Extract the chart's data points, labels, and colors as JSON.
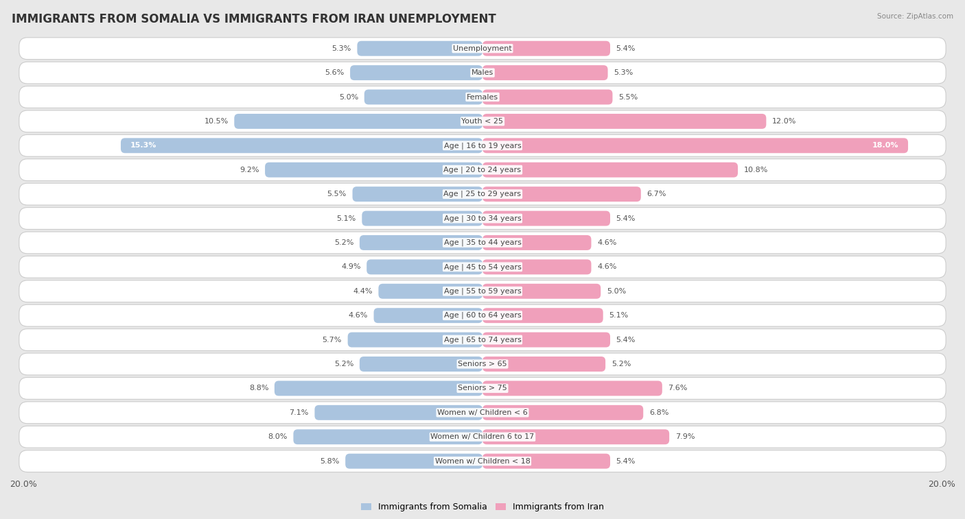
{
  "title": "IMMIGRANTS FROM SOMALIA VS IMMIGRANTS FROM IRAN UNEMPLOYMENT",
  "source": "Source: ZipAtlas.com",
  "categories": [
    "Unemployment",
    "Males",
    "Females",
    "Youth < 25",
    "Age | 16 to 19 years",
    "Age | 20 to 24 years",
    "Age | 25 to 29 years",
    "Age | 30 to 34 years",
    "Age | 35 to 44 years",
    "Age | 45 to 54 years",
    "Age | 55 to 59 years",
    "Age | 60 to 64 years",
    "Age | 65 to 74 years",
    "Seniors > 65",
    "Seniors > 75",
    "Women w/ Children < 6",
    "Women w/ Children 6 to 17",
    "Women w/ Children < 18"
  ],
  "somalia_values": [
    5.3,
    5.6,
    5.0,
    10.5,
    15.3,
    9.2,
    5.5,
    5.1,
    5.2,
    4.9,
    4.4,
    4.6,
    5.7,
    5.2,
    8.8,
    7.1,
    8.0,
    5.8
  ],
  "iran_values": [
    5.4,
    5.3,
    5.5,
    12.0,
    18.0,
    10.8,
    6.7,
    5.4,
    4.6,
    4.6,
    5.0,
    5.1,
    5.4,
    5.2,
    7.6,
    6.8,
    7.9,
    5.4
  ],
  "somalia_color": "#aac4df",
  "iran_color": "#f0a0bb",
  "somalia_label": "Immigrants from Somalia",
  "iran_label": "Immigrants from Iran",
  "x_max": 20.0,
  "bg_color": "#e8e8e8",
  "title_fontsize": 12,
  "label_fontsize": 8,
  "value_fontsize": 8
}
